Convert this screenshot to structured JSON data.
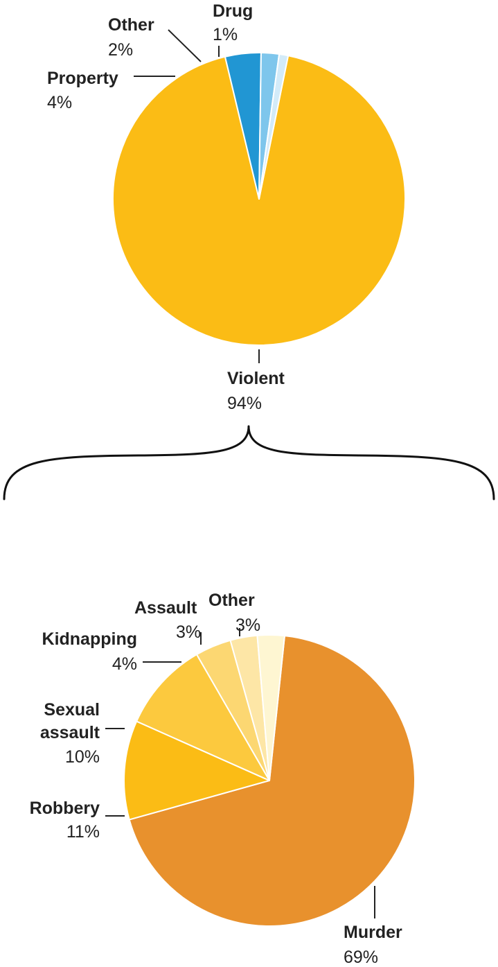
{
  "chart_data": [
    {
      "type": "pie",
      "title": "",
      "slices": [
        {
          "label": "Violent",
          "value_label": "94%",
          "value": 94,
          "color": "#FBBC15"
        },
        {
          "label": "Property",
          "value_label": "4%",
          "value": 4,
          "color": "#2196D3"
        },
        {
          "label": "Other",
          "value_label": "2%",
          "value": 2,
          "color": "#7EC6EC"
        },
        {
          "label": "Drug",
          "value_label": "1%",
          "value": 1,
          "color": "#D3EBF9"
        }
      ]
    },
    {
      "type": "pie",
      "title": "",
      "breakdown_of": "Violent",
      "slices": [
        {
          "label": "Murder",
          "value_label": "69%",
          "value": 69,
          "color": "#E8912D"
        },
        {
          "label": "Robbery",
          "value_label": "11%",
          "value": 11,
          "color": "#FBBC15"
        },
        {
          "label": "Sexual assault",
          "label_lines": [
            "Sexual",
            "assault"
          ],
          "value_label": "10%",
          "value": 10,
          "color": "#FCC93E"
        },
        {
          "label": "Kidnapping",
          "value_label": "4%",
          "value": 4,
          "color": "#FCD772"
        },
        {
          "label": "Assault",
          "value_label": "3%",
          "value": 3,
          "color": "#FDE6A6"
        },
        {
          "label": "Other",
          "value_label": "3%",
          "value": 3,
          "color": "#FEF6D2"
        }
      ]
    }
  ]
}
